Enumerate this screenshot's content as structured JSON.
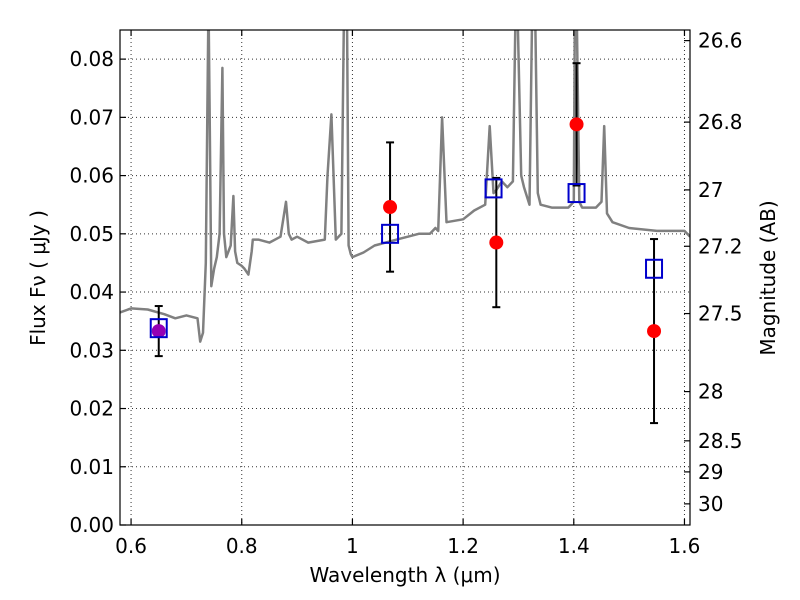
{
  "chart_data": {
    "type": "scatter",
    "xlabel": "Wavelength  λ (μm)",
    "ylabel": "Flux  Fν  ( μJy )",
    "y2label": "Magnitude (AB)",
    "xlim": [
      0.58,
      1.61
    ],
    "ylim": [
      0.0,
      0.085
    ],
    "x_ticks": [
      0.6,
      0.8,
      1.0,
      1.2,
      1.4,
      1.6
    ],
    "x_tick_labels": [
      "0.6",
      "0.8",
      "1",
      "1.2",
      "1.4",
      "1.6"
    ],
    "y_ticks": [
      0.0,
      0.01,
      0.02,
      0.03,
      0.04,
      0.05,
      0.06,
      0.07,
      0.08
    ],
    "y_tick_labels": [
      "0.00",
      "0.01",
      "0.02",
      "0.03",
      "0.04",
      "0.05",
      "0.06",
      "0.07",
      "0.08"
    ],
    "y2_ticks": [
      26.6,
      26.8,
      27.0,
      27.2,
      27.5,
      28.0,
      28.5,
      29.0,
      30.0
    ],
    "y2_tick_labels": [
      "26.6",
      "26.8",
      "27",
      "27.2",
      "27.5",
      "28",
      "28.5",
      "29",
      "30"
    ],
    "grid": true,
    "colors": {
      "spectrum": "#808080",
      "observed": "#ff0000",
      "model": "#0000cc",
      "overlap": "#9400b4"
    },
    "series": [
      {
        "kind": "model-spectrum",
        "x": [
          0.58,
          0.6,
          0.63,
          0.66,
          0.68,
          0.7,
          0.72,
          0.725,
          0.73,
          0.735,
          0.74,
          0.742,
          0.745,
          0.75,
          0.755,
          0.76,
          0.765,
          0.768,
          0.772,
          0.78,
          0.785,
          0.788,
          0.792,
          0.8,
          0.805,
          0.812,
          0.818,
          0.82,
          0.83,
          0.85,
          0.87,
          0.88,
          0.885,
          0.89,
          0.9,
          0.92,
          0.95,
          0.955,
          0.962,
          0.97,
          0.98,
          0.985,
          0.99,
          0.993,
          0.997,
          1.0,
          1.02,
          1.04,
          1.06,
          1.08,
          1.1,
          1.12,
          1.14,
          1.145,
          1.15,
          1.155,
          1.162,
          1.17,
          1.2,
          1.22,
          1.24,
          1.248,
          1.255,
          1.26,
          1.27,
          1.28,
          1.29,
          1.295,
          1.298,
          1.305,
          1.31,
          1.32,
          1.325,
          1.33,
          1.335,
          1.34,
          1.36,
          1.38,
          1.39,
          1.4,
          1.402,
          1.405,
          1.41,
          1.415,
          1.44,
          1.45,
          1.455,
          1.46,
          1.47,
          1.5,
          1.55,
          1.6,
          1.61
        ],
        "y": [
          0.0365,
          0.0372,
          0.037,
          0.0362,
          0.0355,
          0.036,
          0.0355,
          0.0315,
          0.033,
          0.045,
          0.09,
          0.07,
          0.041,
          0.044,
          0.046,
          0.05,
          0.0785,
          0.05,
          0.046,
          0.048,
          0.0565,
          0.047,
          0.045,
          0.0445,
          0.044,
          0.043,
          0.047,
          0.049,
          0.049,
          0.0485,
          0.0495,
          0.0555,
          0.05,
          0.049,
          0.0495,
          0.0485,
          0.049,
          0.06,
          0.0705,
          0.049,
          0.05,
          0.09,
          0.09,
          0.048,
          0.0465,
          0.046,
          0.0468,
          0.048,
          0.0485,
          0.049,
          0.0495,
          0.05,
          0.05,
          0.0505,
          0.051,
          0.0505,
          0.07,
          0.052,
          0.0525,
          0.054,
          0.055,
          0.0685,
          0.057,
          0.0575,
          0.059,
          0.058,
          0.059,
          0.09,
          0.09,
          0.06,
          0.058,
          0.055,
          0.09,
          0.09,
          0.057,
          0.055,
          0.0545,
          0.0545,
          0.0545,
          0.0555,
          0.09,
          0.09,
          0.0555,
          0.0545,
          0.0545,
          0.0555,
          0.0685,
          0.0535,
          0.052,
          0.051,
          0.0505,
          0.0505,
          0.0495
        ]
      },
      {
        "kind": "observed",
        "x": [
          0.65,
          1.068,
          1.26,
          1.405,
          1.545
        ],
        "y": [
          0.0333,
          0.0546,
          0.0485,
          0.0688,
          0.0333
        ],
        "err": [
          0.0043,
          0.0111,
          0.0111,
          0.0105,
          0.0158
        ]
      },
      {
        "kind": "model-photometry",
        "x": [
          0.65,
          1.068,
          1.255,
          1.405,
          1.545
        ],
        "y": [
          0.0338,
          0.05,
          0.0578,
          0.057,
          0.044
        ]
      }
    ]
  }
}
